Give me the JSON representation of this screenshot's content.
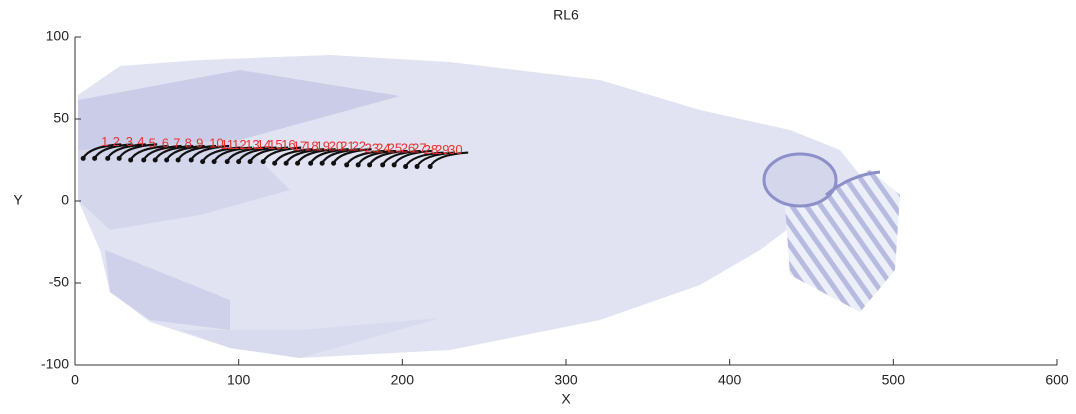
{
  "chart_data": {
    "type": "scatter",
    "title": "RL6",
    "x_label": "X",
    "y_label": "Y",
    "xlim": [
      0,
      600
    ],
    "ylim": [
      -100,
      100
    ],
    "xticks": [
      0,
      100,
      200,
      300,
      400,
      500,
      600
    ],
    "yticks": [
      -100,
      -50,
      0,
      50,
      100
    ],
    "color": "#111111",
    "label_color": "#e8312f",
    "x": [
      5,
      12,
      20,
      27,
      34,
      42,
      49,
      56,
      63,
      71,
      78,
      85,
      93,
      100,
      107,
      115,
      122,
      129,
      136,
      144,
      151,
      158,
      166,
      173,
      180,
      188,
      195,
      202,
      209,
      217
    ],
    "y": [
      26,
      26,
      26,
      26,
      25,
      25,
      25,
      25,
      25,
      25,
      24,
      24,
      24,
      24,
      24,
      24,
      23,
      23,
      23,
      23,
      23,
      23,
      22,
      22,
      22,
      22,
      22,
      21,
      21,
      21
    ],
    "point_labels": [
      "1",
      "2",
      "3",
      "4",
      "5",
      "6",
      "7",
      "8",
      "9",
      "10",
      "11",
      "12",
      "13",
      "14",
      "15",
      "16",
      "17",
      "18",
      "19",
      "20",
      "21",
      "22",
      "23",
      "24",
      "25",
      "26",
      "27",
      "28",
      "29",
      "30"
    ]
  }
}
